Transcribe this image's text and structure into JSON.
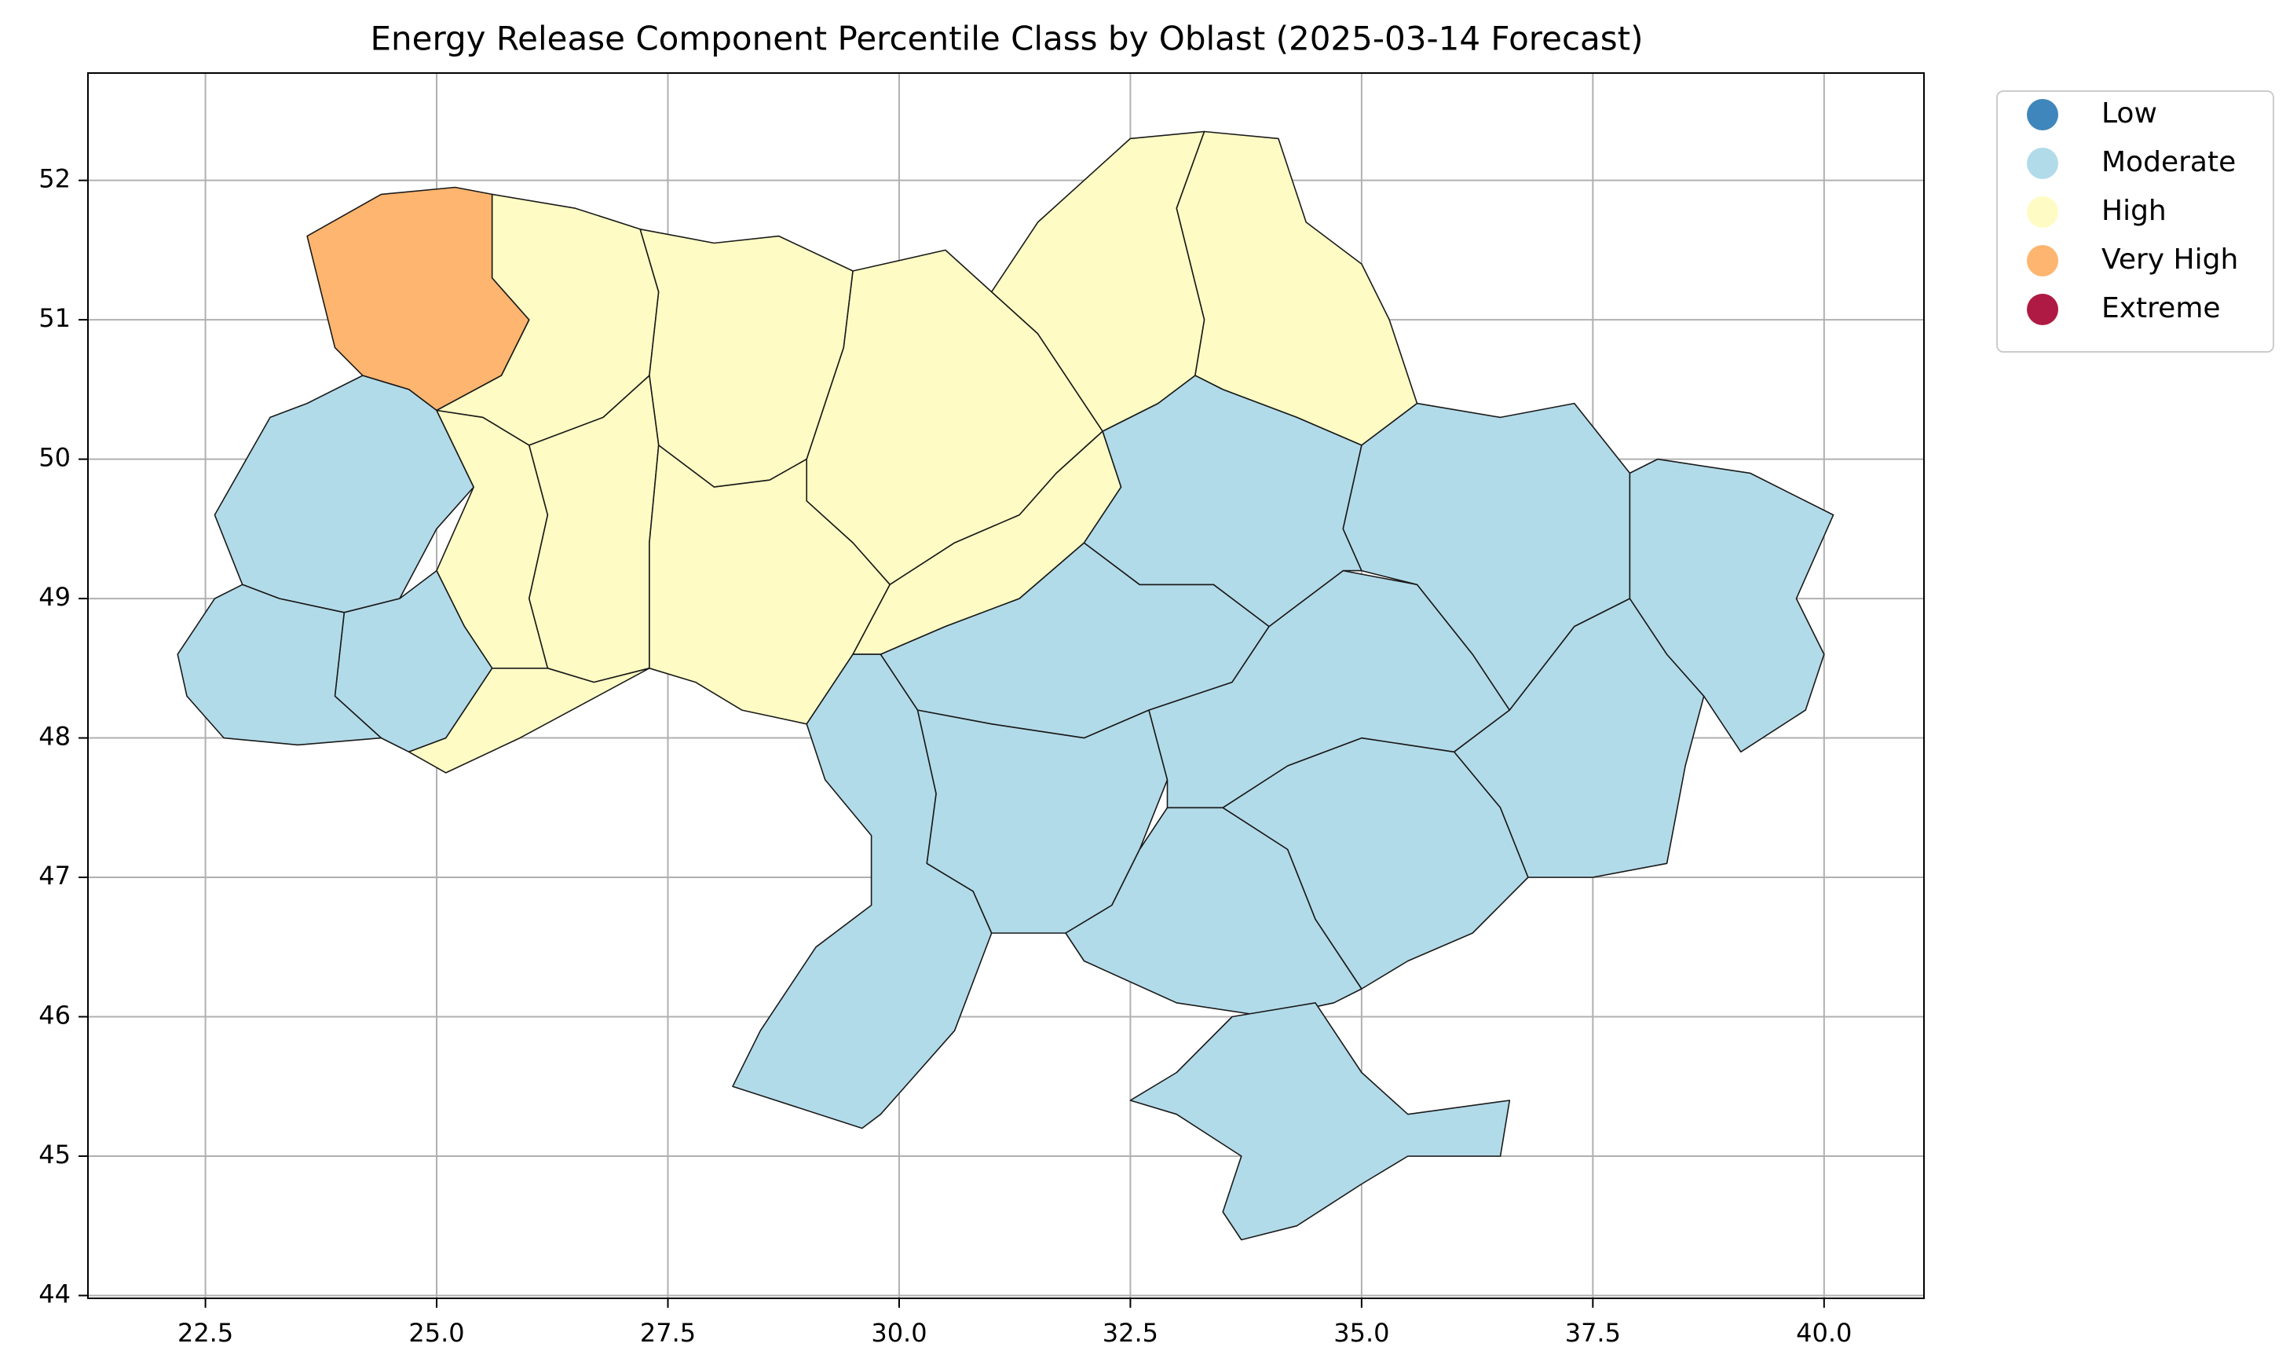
{
  "chart_data": {
    "type": "choropleth",
    "title": "Energy Release Component Percentile Class by Oblast (2025-03-14 Forecast)",
    "xlim": [
      21.23,
      41.08
    ],
    "ylim": [
      43.98,
      52.77
    ],
    "xticks": [
      22.5,
      {
        "value": 25,
        "label": "25.0"
      },
      27.5,
      {
        "value": 30,
        "label": "30.0"
      },
      32.5,
      {
        "value": 35,
        "label": "35.0"
      },
      37.5,
      {
        "value": 40,
        "label": "40.0"
      }
    ],
    "yticks": [
      44,
      45,
      46,
      47,
      48,
      49,
      50,
      51,
      52
    ],
    "grid": true,
    "legend": "outside-right",
    "series": [
      {
        "name": "Low",
        "color": "#3f86bc"
      },
      {
        "name": "Moderate",
        "color": "#b2dbe9"
      },
      {
        "name": "High",
        "color": "#fefcc4"
      },
      {
        "name": "Very High",
        "color": "#fdb56f"
      },
      {
        "name": "Extreme",
        "color": "#ae1a43"
      }
    ],
    "regions": [
      "Very High",
      "High",
      "High",
      "High",
      "High",
      "High",
      "Moderate",
      "High",
      "High",
      "High",
      "High",
      "Moderate",
      "Moderate",
      "High",
      "Moderate",
      "Moderate",
      "Moderate",
      "Moderate",
      "Moderate",
      "Moderate",
      "Moderate",
      "Moderate",
      "Moderate",
      "Moderate",
      "Moderate"
    ]
  }
}
